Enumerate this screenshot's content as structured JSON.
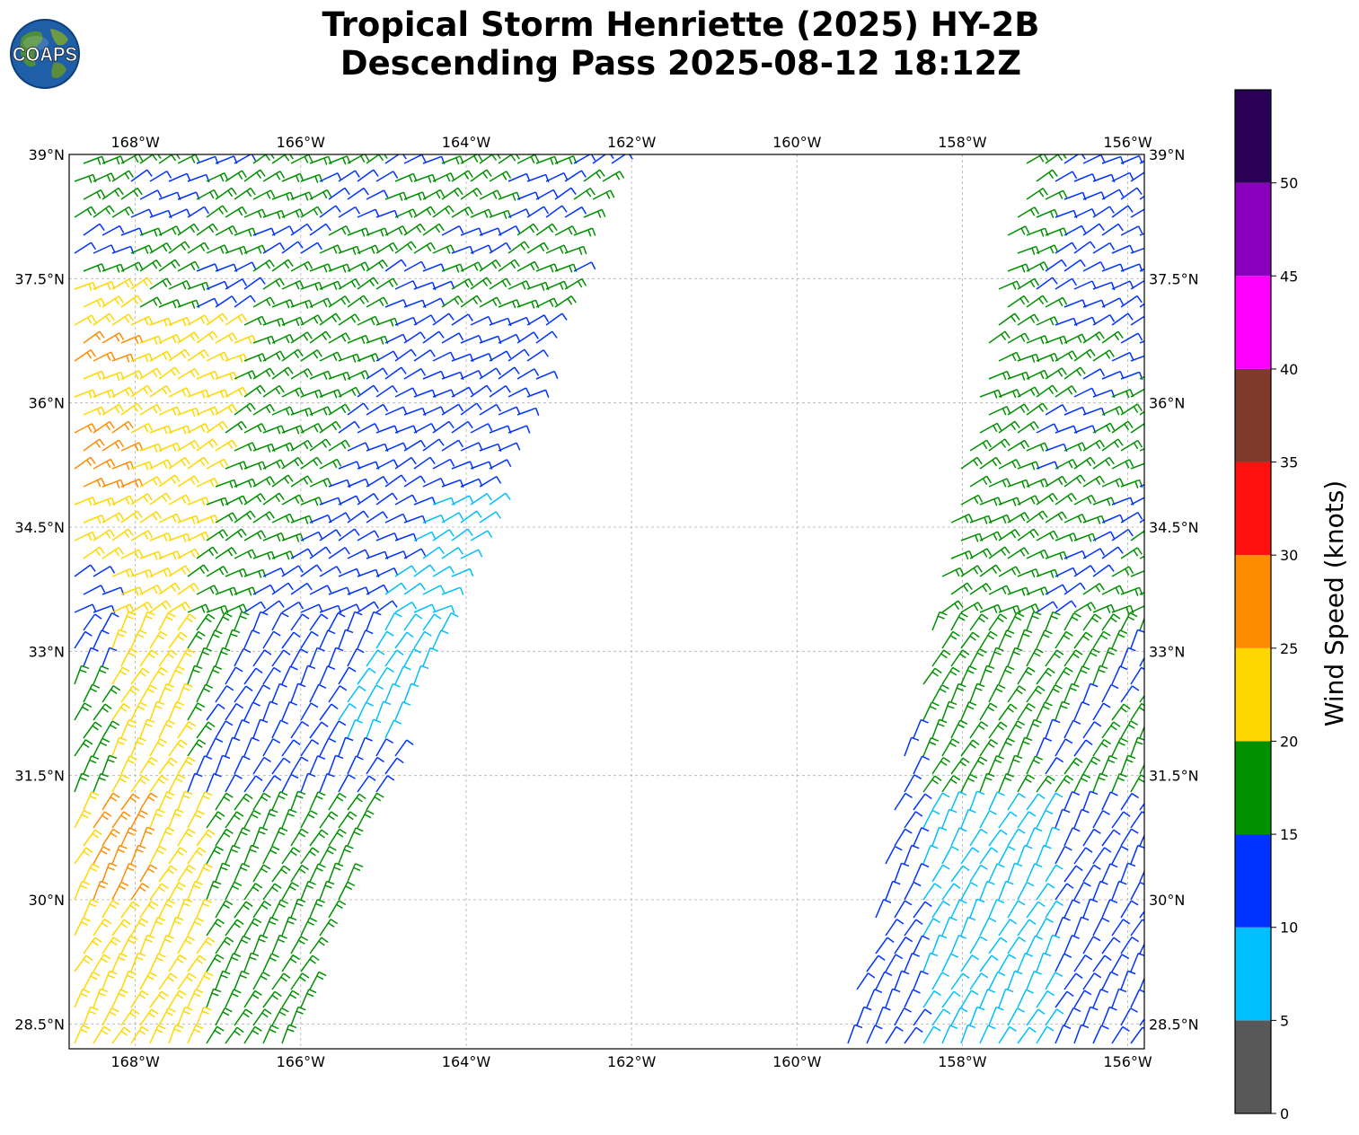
{
  "title": {
    "line1": "Tropical Storm Henriette (2025) HY-2B",
    "line2": "Descending Pass 2025-08-12 18:12Z"
  },
  "logo": {
    "text": "COAPS",
    "icon": "globe-icon"
  },
  "map": {
    "lon_ticks": [
      "168°W",
      "166°W",
      "164°W",
      "162°W",
      "160°W",
      "158°W",
      "156°W"
    ],
    "lon_values": [
      -168,
      -166,
      -164,
      -162,
      -160,
      -158,
      -156
    ],
    "lat_ticks": [
      "39°N",
      "37.5°N",
      "36°N",
      "34.5°N",
      "33°N",
      "31.5°N",
      "30°N",
      "28.5°N"
    ],
    "lat_values": [
      39,
      37.5,
      36,
      34.5,
      33,
      31.5,
      30,
      28.5
    ],
    "lon_range": [
      -168.8,
      -155.8
    ],
    "lat_range": [
      28.2,
      39.0
    ],
    "grid": true,
    "symbol": "wind-barbs"
  },
  "colorbar": {
    "label": "Wind Speed (knots)",
    "ticks": [
      "0",
      "5",
      "10",
      "15",
      "20",
      "25",
      "30",
      "35",
      "40",
      "45",
      "50"
    ],
    "bins": [
      {
        "from": 0,
        "to": 5,
        "color": "#585858"
      },
      {
        "from": 5,
        "to": 10,
        "color": "#00bfff"
      },
      {
        "from": 10,
        "to": 15,
        "color": "#0033ff"
      },
      {
        "from": 15,
        "to": 20,
        "color": "#009000"
      },
      {
        "from": 20,
        "to": 25,
        "color": "#ffd700"
      },
      {
        "from": 25,
        "to": 30,
        "color": "#ff8c00"
      },
      {
        "from": 30,
        "to": 35,
        "color": "#ff1010"
      },
      {
        "from": 35,
        "to": 40,
        "color": "#7f3b2a"
      },
      {
        "from": 40,
        "to": 45,
        "color": "#ff00ff"
      },
      {
        "from": 45,
        "to": 50,
        "color": "#8800bb"
      },
      {
        "from": 50,
        "to": 55,
        "color": "#2a0055"
      }
    ]
  }
}
